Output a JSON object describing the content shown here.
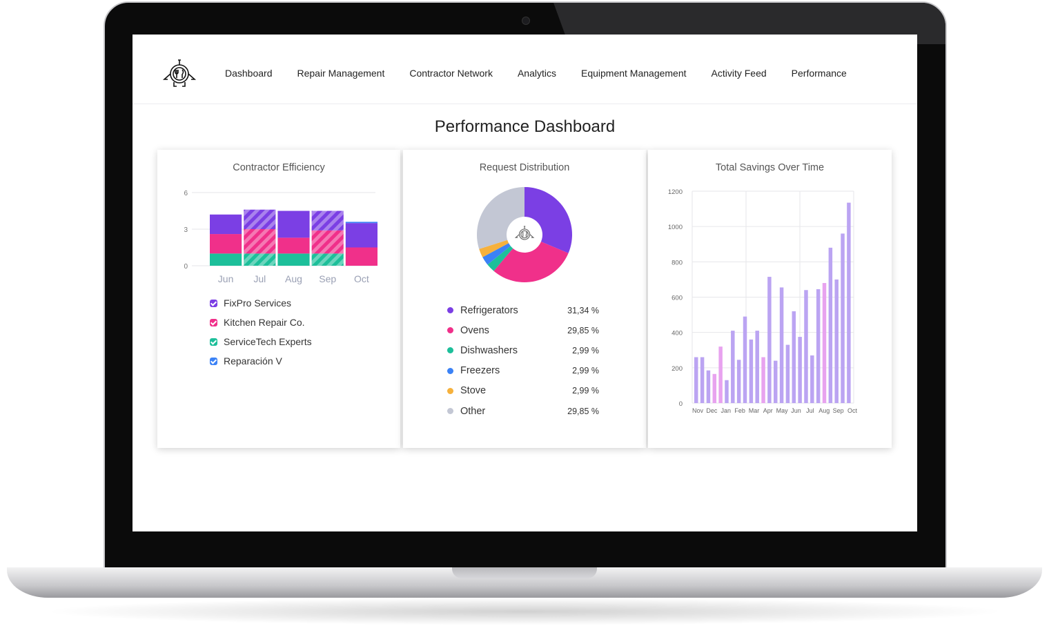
{
  "nav": {
    "items": [
      "Dashboard",
      "Repair Management",
      "Contractor Network",
      "Analytics",
      "Equipment Management",
      "Activity Feed",
      "Performance"
    ]
  },
  "page": {
    "title": "Performance Dashboard"
  },
  "cards": {
    "efficiency_title": "Contractor Efficiency",
    "distribution_title": "Request Distribution",
    "savings_title": "Total Savings Over Time"
  },
  "efficiency_legend": [
    {
      "label": "FixPro Services",
      "color": "#7b3fe4"
    },
    {
      "label": "Kitchen Repair Co.",
      "color": "#f0308a"
    },
    {
      "label": "ServiceTech Experts",
      "color": "#1dbf9a"
    },
    {
      "label": "Reparación V",
      "color": "#3b82f6"
    }
  ],
  "distribution_legend": [
    {
      "label": "Refrigerators",
      "pct": "31,34 %",
      "color": "#7b3fe4"
    },
    {
      "label": "Ovens",
      "pct": "29,85 %",
      "color": "#f0308a"
    },
    {
      "label": "Dishwashers",
      "pct": "2,99 %",
      "color": "#1dbf9a"
    },
    {
      "label": "Freezers",
      "pct": "2,99 %",
      "color": "#3b82f6"
    },
    {
      "label": "Stove",
      "pct": "2,99 %",
      "color": "#f6b13c"
    },
    {
      "label": "Other",
      "pct": "29,85 %",
      "color": "#c3c7d4"
    }
  ],
  "chart_data": [
    {
      "type": "bar",
      "stacked": true,
      "title": "Contractor Efficiency",
      "categories": [
        "Jun",
        "Jul",
        "Aug",
        "Sep",
        "Oct"
      ],
      "ylim": [
        0,
        6
      ],
      "yticks": [
        0,
        3,
        6
      ],
      "series": [
        {
          "name": "ServiceTech Experts",
          "color": "#1dbf9a",
          "values": [
            1.0,
            1.0,
            1.0,
            1.0,
            0.0
          ]
        },
        {
          "name": "Kitchen Repair Co.",
          "color": "#f0308a",
          "values": [
            1.6,
            2.0,
            1.3,
            1.9,
            1.5
          ]
        },
        {
          "name": "FixPro Services",
          "color": "#7b3fe4",
          "values": [
            1.6,
            1.6,
            2.2,
            1.6,
            2.0
          ]
        },
        {
          "name": "Reparación V",
          "color": "#3b82f6",
          "values": [
            0,
            0,
            0,
            0,
            0.1
          ]
        }
      ],
      "hatched_categories": [
        "Jul",
        "Sep"
      ],
      "grid": true
    },
    {
      "type": "pie",
      "title": "Request Distribution",
      "labels": [
        "Refrigerators",
        "Ovens",
        "Dishwashers",
        "Freezers",
        "Stove",
        "Other"
      ],
      "values": [
        31.34,
        29.85,
        2.99,
        2.99,
        2.99,
        29.85
      ],
      "colors": [
        "#7b3fe4",
        "#f0308a",
        "#1dbf9a",
        "#3b82f6",
        "#f6b13c",
        "#c3c7d4"
      ],
      "donut": true
    },
    {
      "type": "bar",
      "title": "Total Savings Over Time",
      "x_ticks": [
        "Nov",
        "Dec",
        "Jan",
        "Feb",
        "Mar",
        "Apr",
        "May",
        "Jun",
        "Jul",
        "Aug",
        "Sep",
        "Oct"
      ],
      "ylim": [
        0,
        1200
      ],
      "yticks": [
        0,
        200,
        400,
        600,
        800,
        1000,
        1200
      ],
      "values": [
        260,
        260,
        185,
        165,
        320,
        130,
        410,
        245,
        490,
        360,
        410,
        260,
        715,
        240,
        655,
        330,
        520,
        375,
        640,
        270,
        645,
        680,
        880,
        700,
        960,
        1135
      ],
      "highlight_indices": [
        3,
        4,
        11,
        21
      ],
      "color": "#bba4f2",
      "highlight_color": "#e8a3ef",
      "grid": true
    }
  ]
}
